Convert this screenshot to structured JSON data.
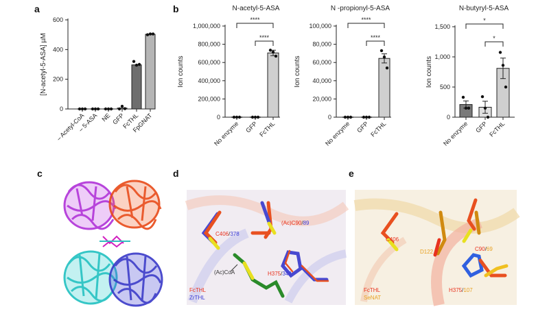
{
  "panels": {
    "a": "a",
    "b": "b",
    "c": "c",
    "d": "d",
    "e": "e"
  },
  "chart_data": [
    {
      "type": "bar",
      "panel": "a",
      "title": "",
      "ylabel": "[N-acetyl-5-ASA] µM",
      "ylim": [
        0,
        600
      ],
      "yticks": [
        "0",
        "200",
        "400",
        "600"
      ],
      "ytick_values": [
        0,
        200,
        400,
        600
      ],
      "categories": [
        "– Acetyl-CoA",
        "– 5-ASA",
        "NE",
        "GFP",
        "FcTHL",
        "FpGNAT"
      ],
      "values": [
        0,
        0,
        0,
        6,
        297,
        503
      ],
      "points": [
        [
          0,
          0,
          0
        ],
        [
          0,
          0,
          0
        ],
        [
          0,
          0,
          0
        ],
        [
          0,
          18,
          2
        ],
        [
          320,
          295,
          300
        ],
        [
          500,
          505,
          505
        ]
      ],
      "bar_colors": [
        "#bdbdbd",
        "#bdbdbd",
        "#bdbdbd",
        "#bdbdbd",
        "#6e6e6e",
        "#b5b5b5"
      ]
    },
    {
      "type": "bar",
      "panel": "b",
      "title": "N-acetyl-5-ASA",
      "ylabel": "Ion counts",
      "ylim": [
        0,
        1000000
      ],
      "yticks": [
        "0",
        "200,000",
        "400,000",
        "600,000",
        "800,000",
        "1,000,000"
      ],
      "ytick_values": [
        0,
        200000,
        400000,
        600000,
        800000,
        1000000
      ],
      "categories": [
        "No enzyme",
        "GFP",
        "FcTHL"
      ],
      "values": [
        0,
        0,
        705000
      ],
      "errors": [
        0,
        0,
        30000
      ],
      "points": [
        [
          0,
          0,
          0
        ],
        [
          0,
          0,
          0
        ],
        [
          735000,
          715000,
          670000
        ]
      ],
      "bar_colors": [
        "#cfcfcf",
        "#cfcfcf",
        "#cfcfcf"
      ],
      "significance": [
        {
          "from": "No enzyme",
          "to": "FcTHL",
          "label": "****"
        },
        {
          "from": "GFP",
          "to": "FcTHL",
          "label": "****"
        }
      ]
    },
    {
      "type": "bar",
      "panel": "b",
      "title": "N -propionyl-5-ASA",
      "ylabel": "Ion counts",
      "ylim": [
        0,
        100000
      ],
      "yticks": [
        "0",
        "20,000",
        "40,000",
        "60,000",
        "80,000",
        "100,000"
      ],
      "ytick_values": [
        0,
        20000,
        40000,
        60000,
        80000,
        100000
      ],
      "categories": [
        "No enzyme",
        "GFP",
        "FcTHL"
      ],
      "values": [
        0,
        0,
        64500
      ],
      "errors": [
        0,
        0,
        5000
      ],
      "points": [
        [
          0,
          0,
          0
        ],
        [
          0,
          0,
          0
        ],
        [
          73000,
          66000,
          54000
        ]
      ],
      "bar_colors": [
        "#cfcfcf",
        "#cfcfcf",
        "#cfcfcf"
      ],
      "significance": [
        {
          "from": "No enzyme",
          "to": "FcTHL",
          "label": "****"
        },
        {
          "from": "GFP",
          "to": "FcTHL",
          "label": "****"
        }
      ]
    },
    {
      "type": "bar",
      "panel": "b",
      "title": "N-butyryl-5-ASA",
      "ylabel": "Ion counts",
      "ylim": [
        0,
        1500
      ],
      "yticks": [
        "0",
        "500",
        "1,000",
        "1,500"
      ],
      "ytick_values": [
        0,
        500,
        1000,
        1500
      ],
      "categories": [
        "No enzyme",
        "GFP",
        "FcTHL"
      ],
      "values": [
        210,
        165,
        810
      ],
      "errors": [
        60,
        100,
        170
      ],
      "points": [
        [
          330,
          150,
          150
        ],
        [
          340,
          150,
          0
        ],
        [
          1075,
          860,
          500
        ]
      ],
      "bar_colors": [
        "#7a7a7a",
        "#e0e0e0",
        "#cfcfcf"
      ],
      "significance": [
        {
          "from": "No enzyme",
          "to": "FcTHL",
          "label": "*"
        },
        {
          "from": "GFP",
          "to": "FcTHL",
          "label": "*"
        }
      ]
    }
  ],
  "structure_d": {
    "labels": {
      "c406": "C406",
      "c406_alt": "378",
      "c90": "(Ac)C90",
      "c90_alt": "89",
      "h375": "H375",
      "h375_alt": "348",
      "coa": "(Ac)CoA"
    },
    "legend": [
      "FcTHL",
      "ZrTHL"
    ],
    "colors": {
      "primary": "#e8321e",
      "secondary": "#3b3bd6",
      "ligand": "#2a8a2a",
      "sulfur": "#e8e020"
    }
  },
  "structure_e": {
    "labels": {
      "c406": "C406",
      "d122": "D122",
      "c90": "C90",
      "c90_alt": "69",
      "h375": "H375",
      "h375_alt": "107"
    },
    "legend": [
      "FcTHL",
      "SeNAT"
    ],
    "colors": {
      "primary": "#e8321e",
      "secondary": "#e8a020"
    }
  },
  "separator": "/"
}
